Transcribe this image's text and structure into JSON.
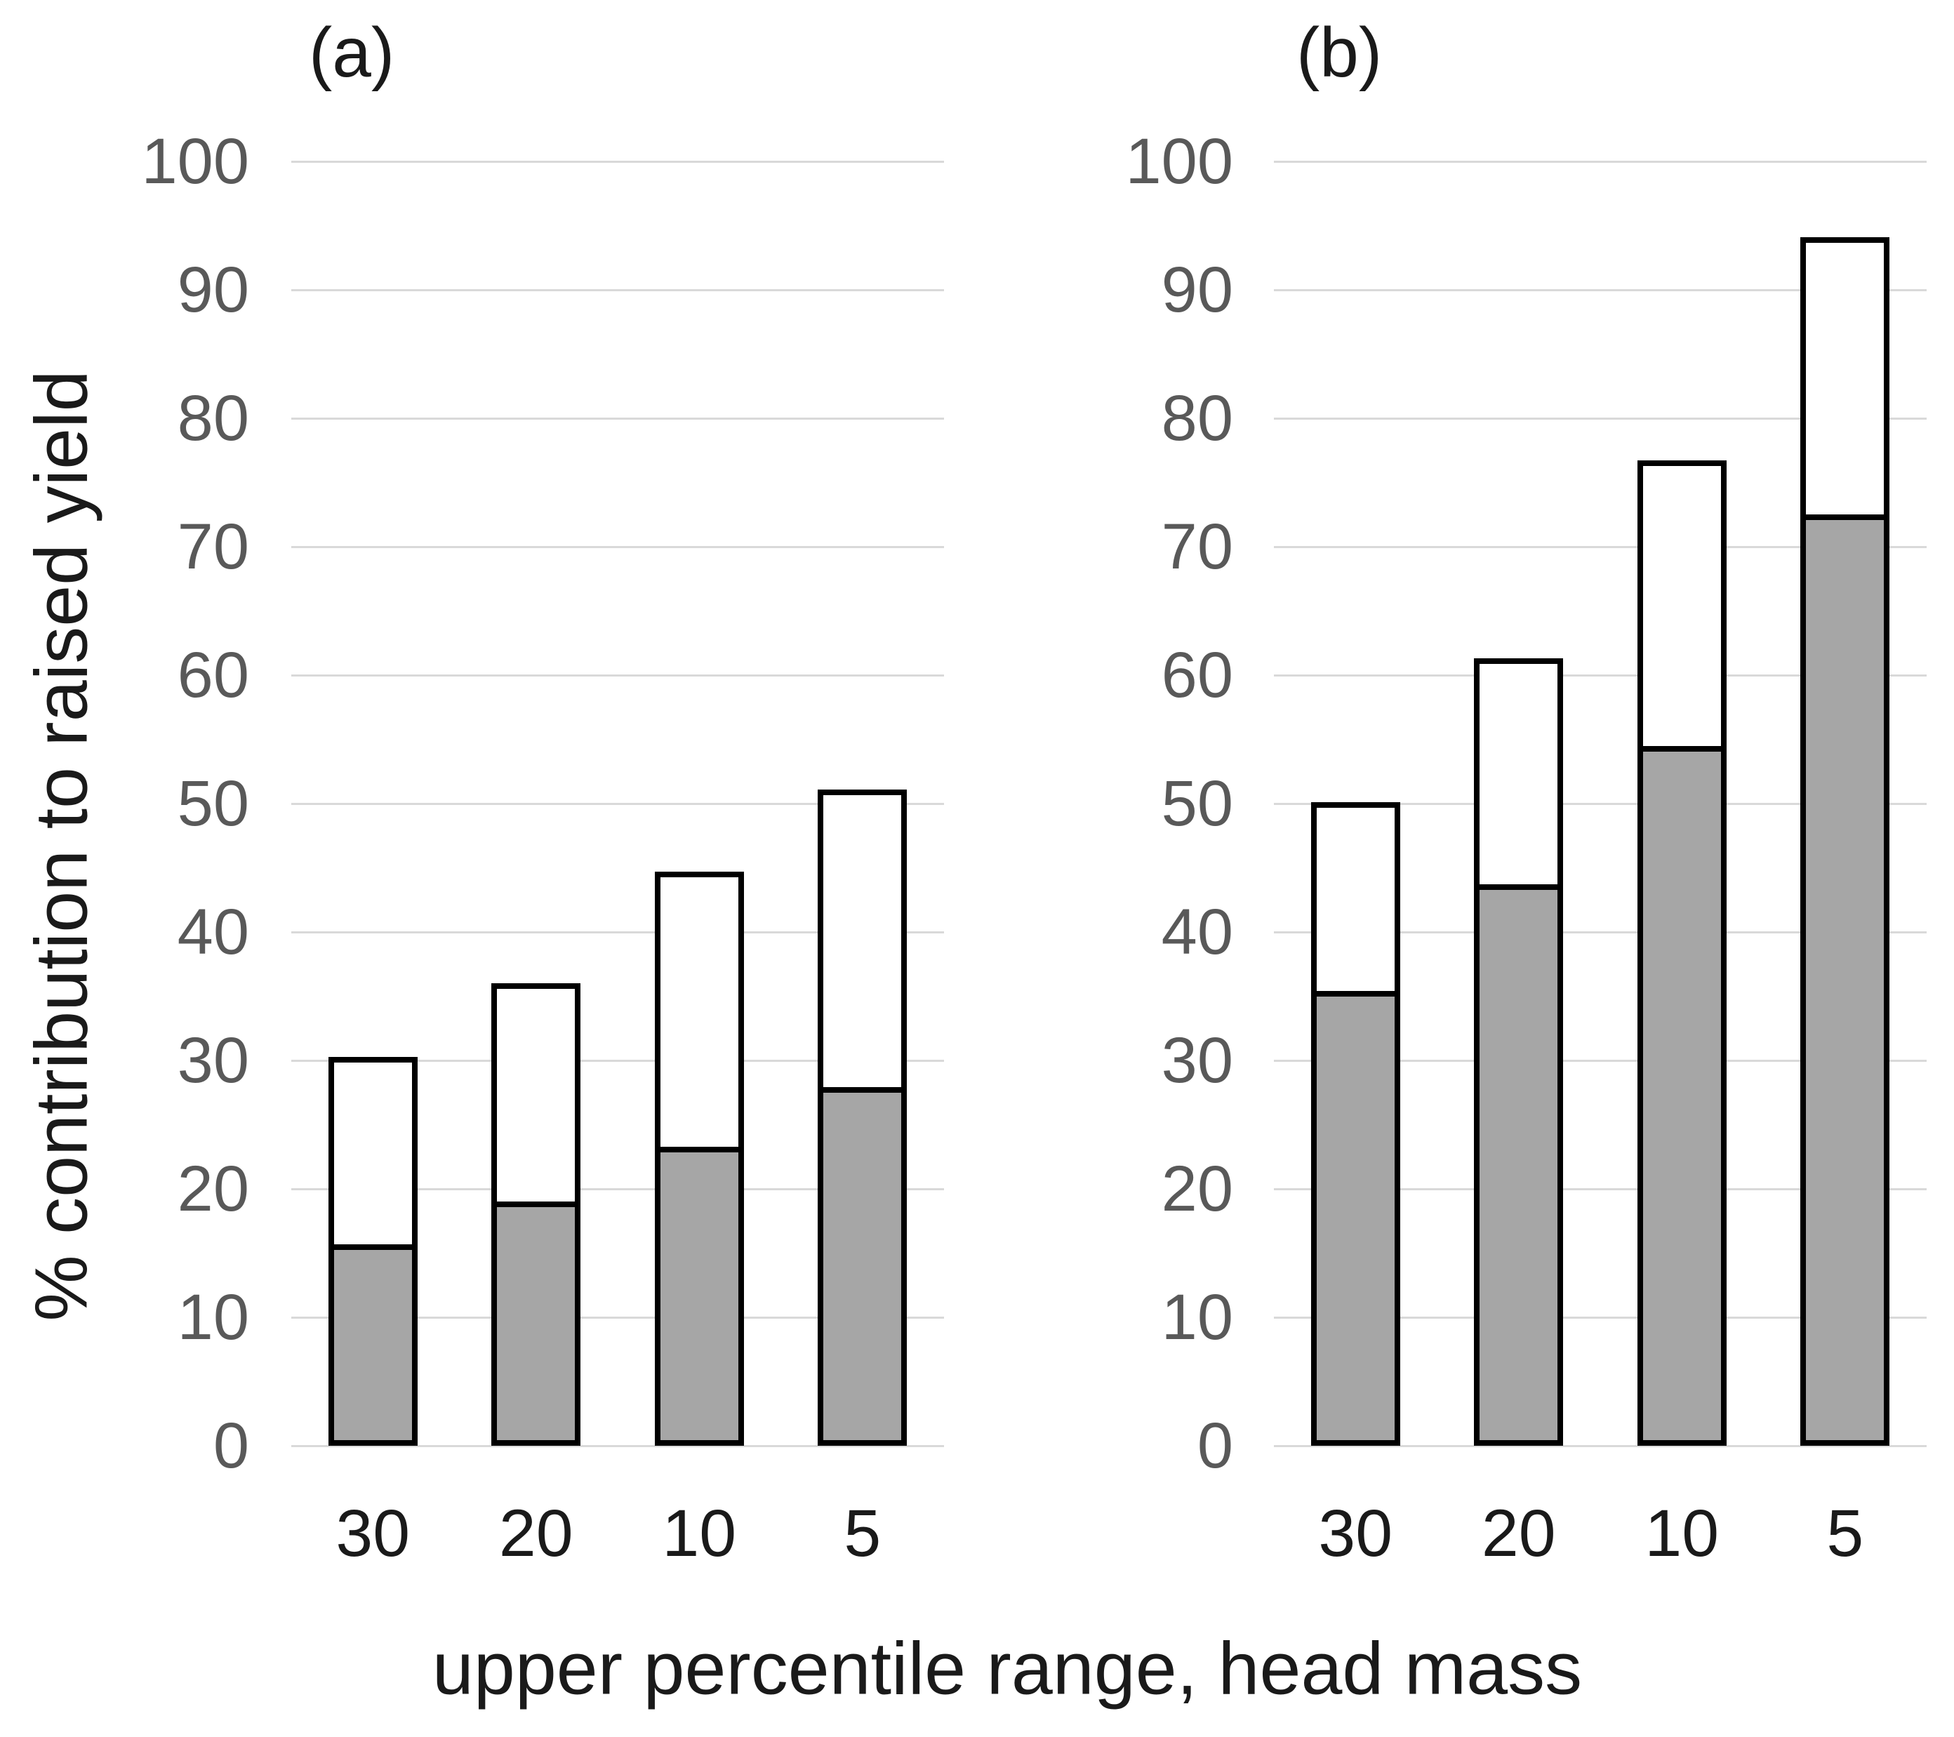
{
  "figure": {
    "y_axis_title": "% contribution to raised yield",
    "x_axis_title": "upper percentile range, head mass",
    "colors": {
      "shaded_fill": "#a6a6a6",
      "unshaded_fill": "#ffffff",
      "bar_border": "#000000",
      "gridline": "#d9d9d9",
      "y_tick_label": "#595959",
      "text": "#1a1a1a"
    }
  },
  "chart_data": [
    {
      "type": "bar",
      "stacked": true,
      "panel_label": "(a)",
      "categories": [
        "30",
        "20",
        "10",
        "5"
      ],
      "series": [
        {
          "name": "shaded (grey) segment",
          "values": [
            15.7,
            19.0,
            23.3,
            27.9
          ]
        },
        {
          "name": "unshaded (white) segment",
          "values": [
            14.6,
            17.0,
            21.4,
            23.2
          ]
        }
      ],
      "totals": [
        30.3,
        36.0,
        44.7,
        51.1
      ],
      "xlabel": "upper percentile range, head mass",
      "ylabel": "% contribution to raised yield",
      "ylim": [
        0,
        100
      ],
      "yticks": [
        0,
        10,
        20,
        30,
        40,
        50,
        60,
        70,
        80,
        90,
        100
      ],
      "grid": true,
      "legend": false
    },
    {
      "type": "bar",
      "stacked": true,
      "panel_label": "(b)",
      "categories": [
        "30",
        "20",
        "10",
        "5"
      ],
      "series": [
        {
          "name": "shaded (grey) segment",
          "values": [
            35.4,
            43.7,
            54.5,
            72.5
          ]
        },
        {
          "name": "unshaded (white) segment",
          "values": [
            14.7,
            17.6,
            22.2,
            21.6
          ]
        }
      ],
      "totals": [
        50.1,
        61.3,
        76.7,
        94.1
      ],
      "xlabel": "upper percentile range, head mass",
      "ylabel": "% contribution to raised yield",
      "ylim": [
        0,
        100
      ],
      "yticks": [
        0,
        10,
        20,
        30,
        40,
        50,
        60,
        70,
        80,
        90,
        100
      ],
      "grid": true,
      "legend": false
    }
  ]
}
